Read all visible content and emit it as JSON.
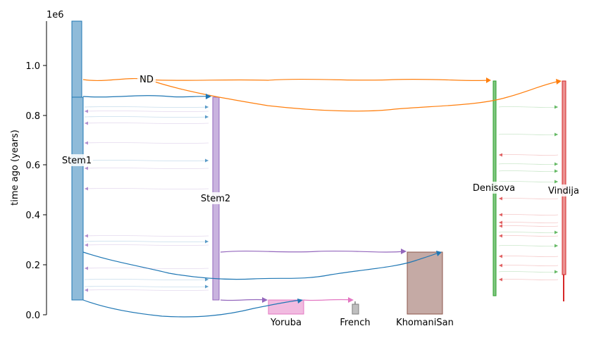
{
  "figure": {
    "ylabel": "time ago (years)",
    "scale_text": "1e6",
    "y_ticks": [
      "0.0",
      "0.2",
      "0.4",
      "0.6",
      "0.8",
      "1.0"
    ]
  },
  "demes": [
    {
      "name": "ND",
      "color": "#1f77b4"
    },
    {
      "name": "Stem1",
      "color": "#1f77b4"
    },
    {
      "name": "Stem2",
      "color": "#9467bd"
    },
    {
      "name": "Yoruba",
      "color": "#e377c2"
    },
    {
      "name": "French",
      "color": "#7f7f7f"
    },
    {
      "name": "KhomaniSan",
      "color": "#8c564b"
    },
    {
      "name": "Denisova",
      "color": "#2ca02c"
    },
    {
      "name": "Vindija",
      "color": "#d62728"
    }
  ],
  "colors": {
    "blue": "#1f77b4",
    "orange": "#ff7f0e",
    "purple": "#9467bd",
    "pink": "#e377c2",
    "gray": "#7f7f7f",
    "brown": "#8c564b",
    "green": "#2ca02c",
    "red": "#d62728"
  }
}
